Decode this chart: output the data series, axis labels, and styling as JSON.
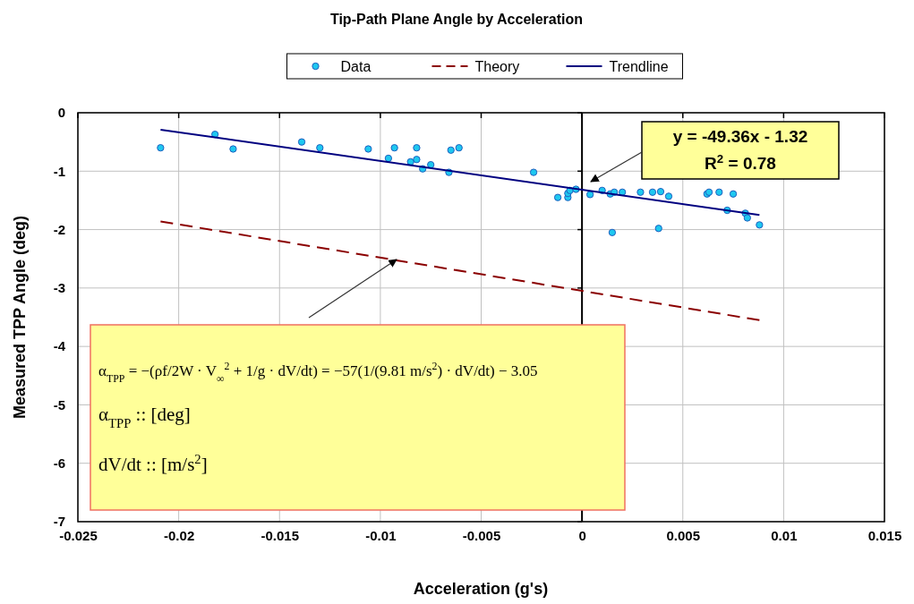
{
  "chart_data": {
    "type": "scatter",
    "title": "Tip-Path Plane Angle by Acceleration",
    "xlabel": "Acceleration (g's)",
    "ylabel": "Measured TPP Angle (deg)",
    "xlim": [
      -0.025,
      0.015
    ],
    "xticks": [
      -0.025,
      -0.02,
      -0.015,
      -0.01,
      -0.005,
      0,
      0.005,
      0.01,
      0.015
    ],
    "ylim": [
      -7,
      0
    ],
    "yticks": [
      -7,
      -6,
      -5,
      -4,
      -3,
      -2,
      -1,
      0
    ],
    "grid": true,
    "legend": "top",
    "series": [
      {
        "name": "Data",
        "marker": "circle",
        "color": "#1ec8f0",
        "x": [
          -0.0209,
          -0.0182,
          -0.0173,
          -0.0139,
          -0.013,
          -0.0106,
          -0.0093,
          -0.0082,
          -0.0096,
          -0.0085,
          -0.0082,
          -0.0079,
          -0.0075,
          -0.0066,
          -0.0065,
          -0.0061,
          -0.0024,
          -0.0012,
          -0.0007,
          -0.0007,
          -0.0006,
          -0.0003,
          0.0004,
          0.001,
          0.0014,
          0.0016,
          0.002,
          0.0015,
          0.0029,
          0.0035,
          0.0039,
          0.0038,
          0.0043,
          0.0062,
          0.0063,
          0.0068,
          0.0075,
          0.0072,
          0.0081,
          0.0082,
          0.0088
        ],
        "values": [
          -0.6,
          -0.37,
          -0.62,
          -0.5,
          -0.6,
          -0.62,
          -0.6,
          -0.6,
          -0.78,
          -0.84,
          -0.8,
          -0.96,
          -0.89,
          -1.02,
          -0.64,
          -0.6,
          -1.02,
          -1.45,
          -1.45,
          -1.38,
          -1.33,
          -1.31,
          -1.4,
          -1.33,
          -1.39,
          -1.36,
          -1.36,
          -2.05,
          -1.36,
          -1.36,
          -1.35,
          -1.98,
          -1.43,
          -1.39,
          -1.36,
          -1.36,
          -1.39,
          -1.67,
          -1.72,
          -1.8,
          -1.92
        ]
      },
      {
        "name": "Theory",
        "type": "line",
        "line_style": "dashed",
        "color": "#8b0000",
        "x": [
          -0.0209,
          0.0088
        ],
        "values": [
          -1.86,
          -3.55
        ]
      },
      {
        "name": "Trendline",
        "type": "line",
        "line_style": "solid",
        "color": "#000080",
        "x": [
          -0.0209,
          0.0088
        ],
        "values": [
          -0.29,
          -1.75
        ]
      }
    ],
    "annotations": [
      "y = -49.36x - 1.32",
      "R$^{2}$ = 0.78",
      "α$_{TPP}$ = −(ρf/2W · V$_{∞}$$^{2}$ + 1/g · dV/dt) = −57(1/(9.81 m/s$^{2}$) · dV/dt) − 3.05",
      "α$_{TPP}$ :: [deg]",
      "dV/dt :: [m/s$^{2}$]"
    ]
  }
}
